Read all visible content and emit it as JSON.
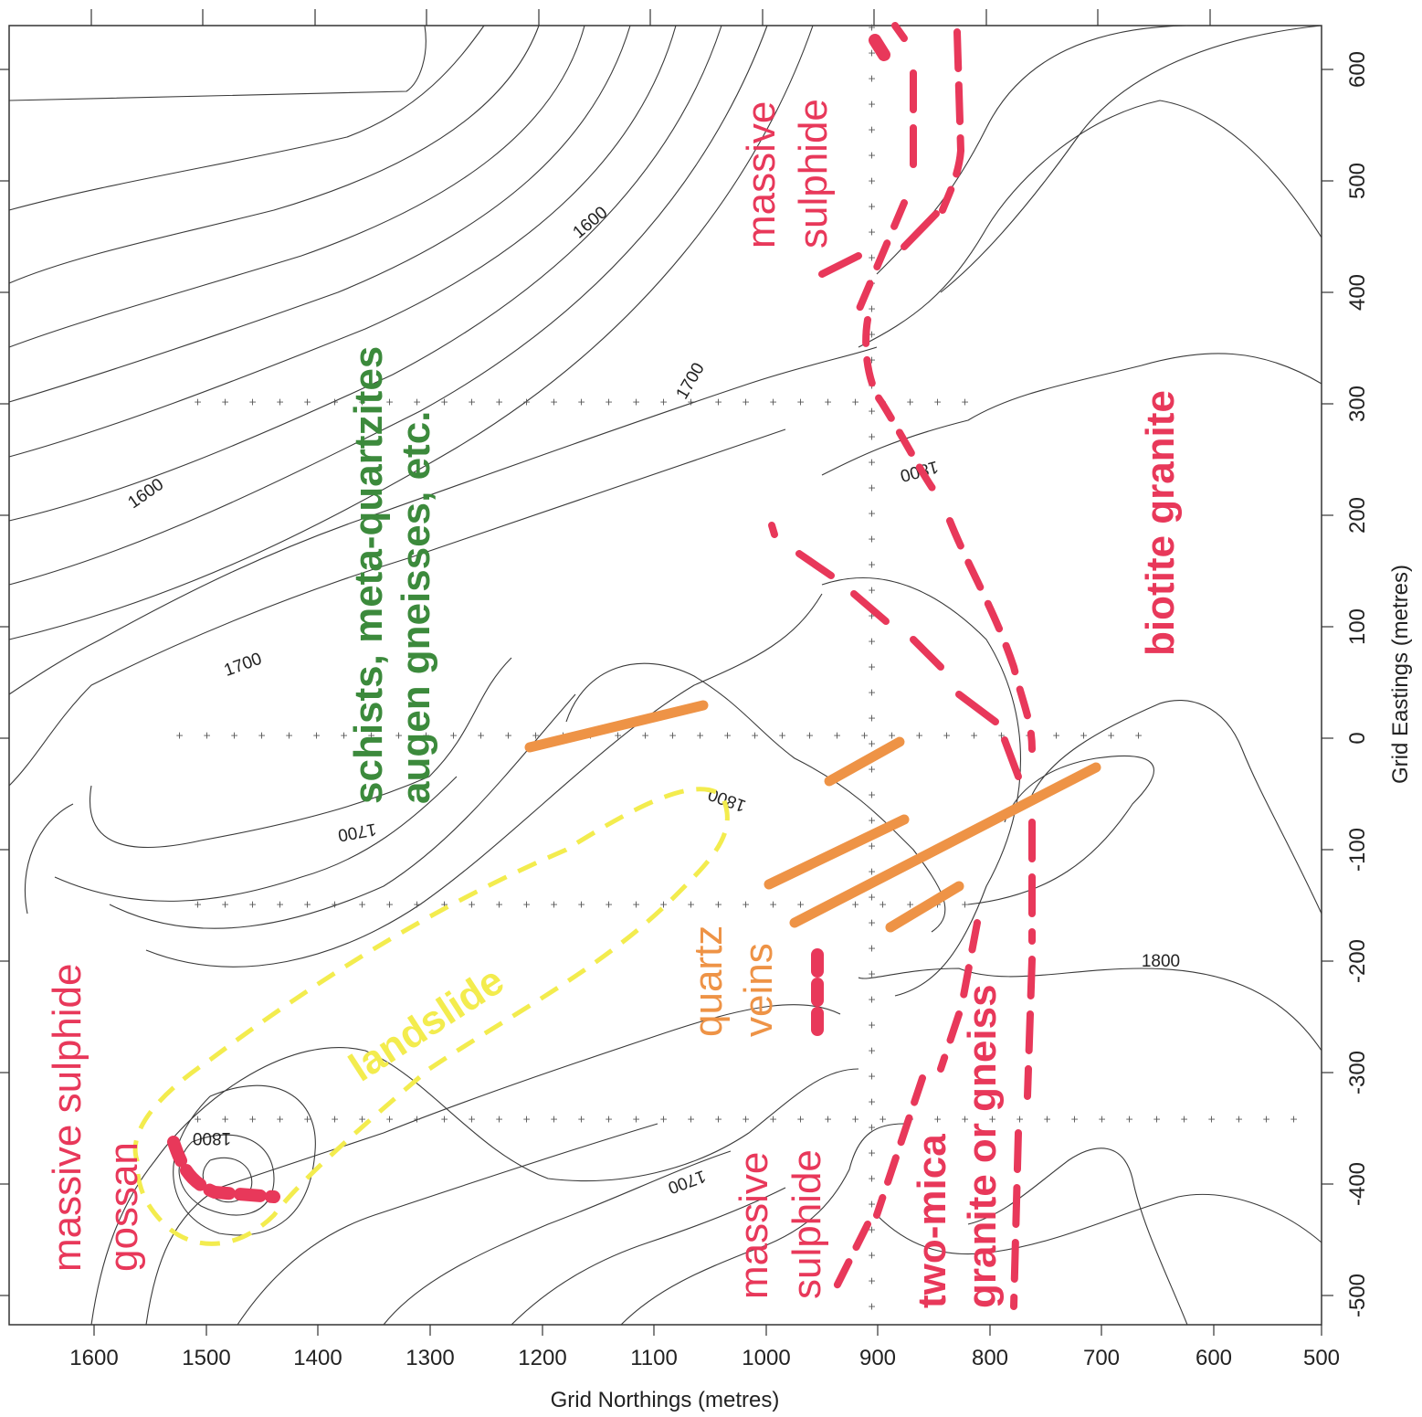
{
  "axes": {
    "x_title": "Grid Northings (metres)",
    "y_title": "Grid Eastings (metres)",
    "x_ticks": [
      "1600",
      "1500",
      "1400",
      "1300",
      "1200",
      "1100",
      "1000",
      "900",
      "800",
      "700",
      "600",
      "500"
    ],
    "y_ticks": [
      "600",
      "500",
      "400",
      "300",
      "200",
      "100",
      "0",
      "-100",
      "-200",
      "-300",
      "-400",
      "-500"
    ]
  },
  "contour_labels": [
    "1600",
    "1600",
    "1700",
    "1700",
    "1700",
    "1800",
    "1800",
    "1800",
    "1700",
    "1800"
  ],
  "units": {
    "schists": "schists, meta-quartzites",
    "augen": "augen gneisses, etc.",
    "biotite": "biotite granite",
    "massive_top": "massive",
    "sulphide_top": "sulphide",
    "massive_bottom": "massive",
    "sulphide_bottom": "sulphide",
    "massive_sulphide_left": "massive sulphide",
    "gossan": "gossan",
    "landslide": "landslide",
    "quartz": "quartz",
    "veins": "veins",
    "two_mica": "two-mica",
    "granite_gneiss": "granite or gneiss"
  },
  "colors": {
    "sulphide": "#e8385a",
    "schist": "#3c8a3c",
    "quartz": "#ee9346",
    "landslide": "#f3ec4e",
    "contour": "#3a3a3a"
  }
}
